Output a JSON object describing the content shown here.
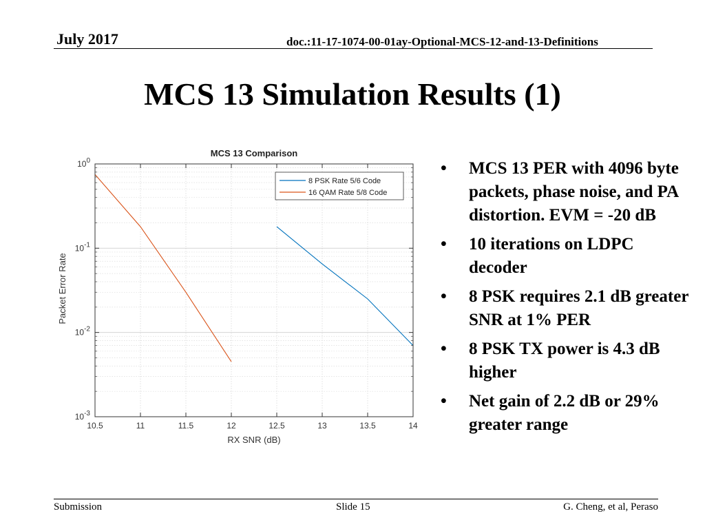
{
  "header": {
    "date": "July 2017",
    "doc": "doc.:11-17-1074-00-01ay-Optional-MCS-12-and-13-Definitions"
  },
  "slide_title": "MCS 13 Simulation Results (1)",
  "bullets": [
    "MCS 13 PER with 4096 byte packets, phase noise, and PA distortion. EVM = -20 dB",
    "10 iterations on LDPC decoder",
    "8 PSK requires 2.1 dB greater SNR at 1% PER",
    "8 PSK TX power is 4.3 dB higher",
    "Net gain of 2.2 dB or 29% greater range"
  ],
  "bullet_symbol": "•",
  "footer": {
    "left": "Submission",
    "center": "Slide 15",
    "right": "G. Cheng, et al, Peraso"
  },
  "chart_data": {
    "type": "line",
    "title": "MCS 13 Comparison",
    "xlabel": "RX SNR (dB)",
    "ylabel": "Packet Error Rate",
    "xlim": [
      10.5,
      14
    ],
    "ylim": [
      0.001,
      1
    ],
    "yscale": "log",
    "grid": true,
    "legend_position": "top-right",
    "x_ticks": [
      "10.5",
      "11",
      "11.5",
      "12",
      "12.5",
      "13",
      "13.5",
      "14"
    ],
    "y_ticks": [
      {
        "base": "10",
        "exp": "0"
      },
      {
        "base": "10",
        "exp": "-1"
      },
      {
        "base": "10",
        "exp": "-2"
      },
      {
        "base": "10",
        "exp": "-3"
      }
    ],
    "series": [
      {
        "name": "8 PSK Rate 5/6 Code",
        "color": "#0072bd",
        "x": [
          12.5,
          13,
          13.5,
          14
        ],
        "y": [
          0.18,
          0.065,
          0.025,
          0.007
        ]
      },
      {
        "name": "16 QAM Rate 5/8 Code",
        "color": "#d95319",
        "x": [
          10.5,
          11,
          11.5,
          12
        ],
        "y": [
          0.75,
          0.18,
          0.03,
          0.0045
        ]
      }
    ]
  }
}
